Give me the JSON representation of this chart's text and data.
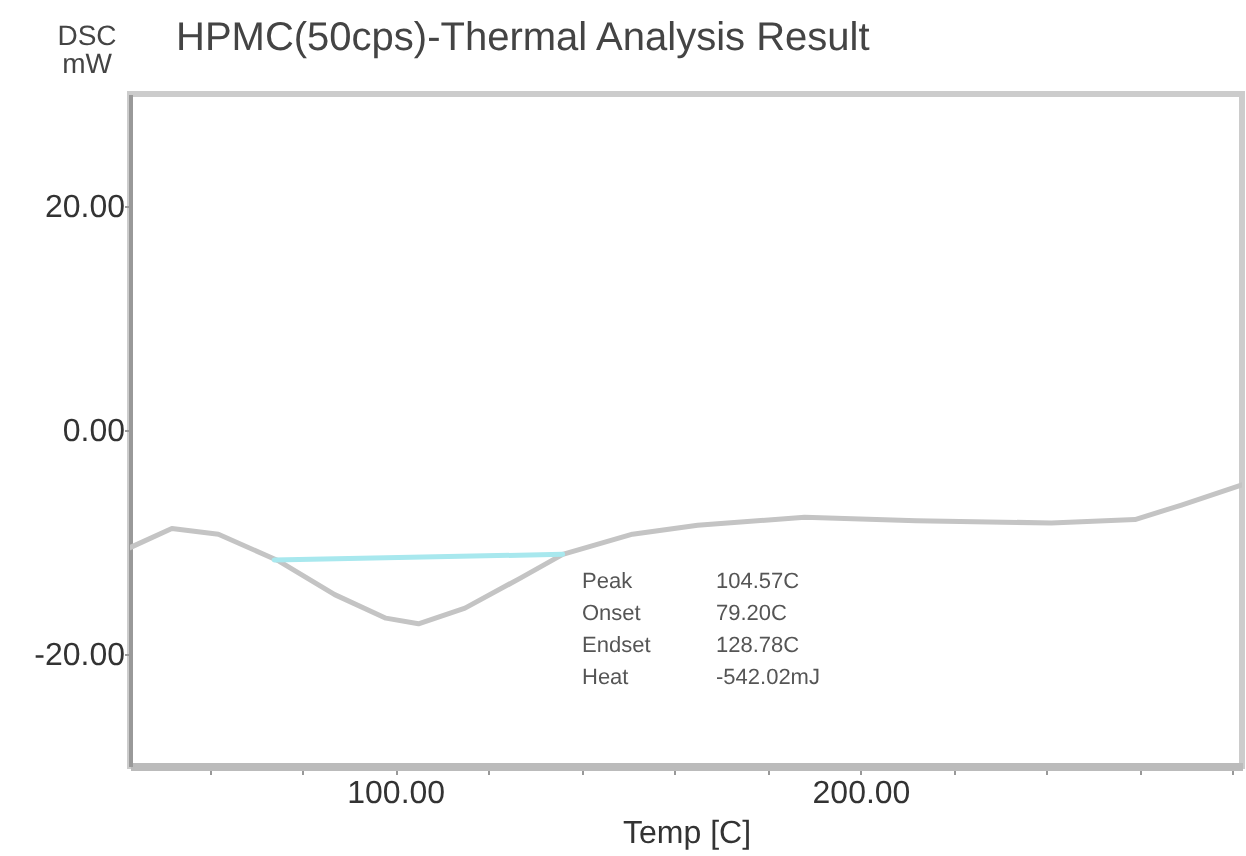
{
  "chart_data": {
    "type": "line",
    "title": "HPMC(50cps)-Thermal Analysis Result",
    "xlabel": "Temp [C]",
    "ylabel": "DSC mW",
    "xlim": [
      43,
      282
    ],
    "ylim": [
      -30,
      30
    ],
    "xticks": [
      {
        "value": 60,
        "label": null
      },
      {
        "value": 80,
        "label": null
      },
      {
        "value": 100,
        "label": "100.00"
      },
      {
        "value": 120,
        "label": null
      },
      {
        "value": 140,
        "label": null
      },
      {
        "value": 160,
        "label": null
      },
      {
        "value": 180,
        "label": null
      },
      {
        "value": 200,
        "label": "200.00"
      },
      {
        "value": 220,
        "label": null
      },
      {
        "value": 240,
        "label": null
      },
      {
        "value": 260,
        "label": null
      },
      {
        "value": 280,
        "label": null
      }
    ],
    "yticks": [
      {
        "value": -20,
        "label": "-20.00"
      },
      {
        "value": 0,
        "label": "0.00"
      },
      {
        "value": 20,
        "label": "20.00"
      }
    ],
    "grid": false,
    "series": [
      {
        "color": "#c4c4c4",
        "x": [
          43,
          52,
          62,
          75,
          87,
          98,
          105,
          115,
          127,
          136,
          151,
          165,
          188,
          212,
          241,
          259,
          269,
          282
        ],
        "values": [
          -10.5,
          -8.8,
          -9.3,
          -11.7,
          -14.7,
          -16.8,
          -17.3,
          -15.9,
          -13.2,
          -11.1,
          -9.3,
          -8.5,
          -7.8,
          -8.1,
          -8.3,
          -8.0,
          -6.7,
          -4.9
        ]
      },
      {
        "color": "#a8e8ee",
        "x": [
          74,
          136
        ],
        "values": [
          -11.6,
          -11.1
        ]
      }
    ],
    "annotations": [
      "Peak 104.57C",
      "Onset 79.20C",
      "Endset 128.78C",
      "Heat -542.02mJ"
    ]
  }
}
